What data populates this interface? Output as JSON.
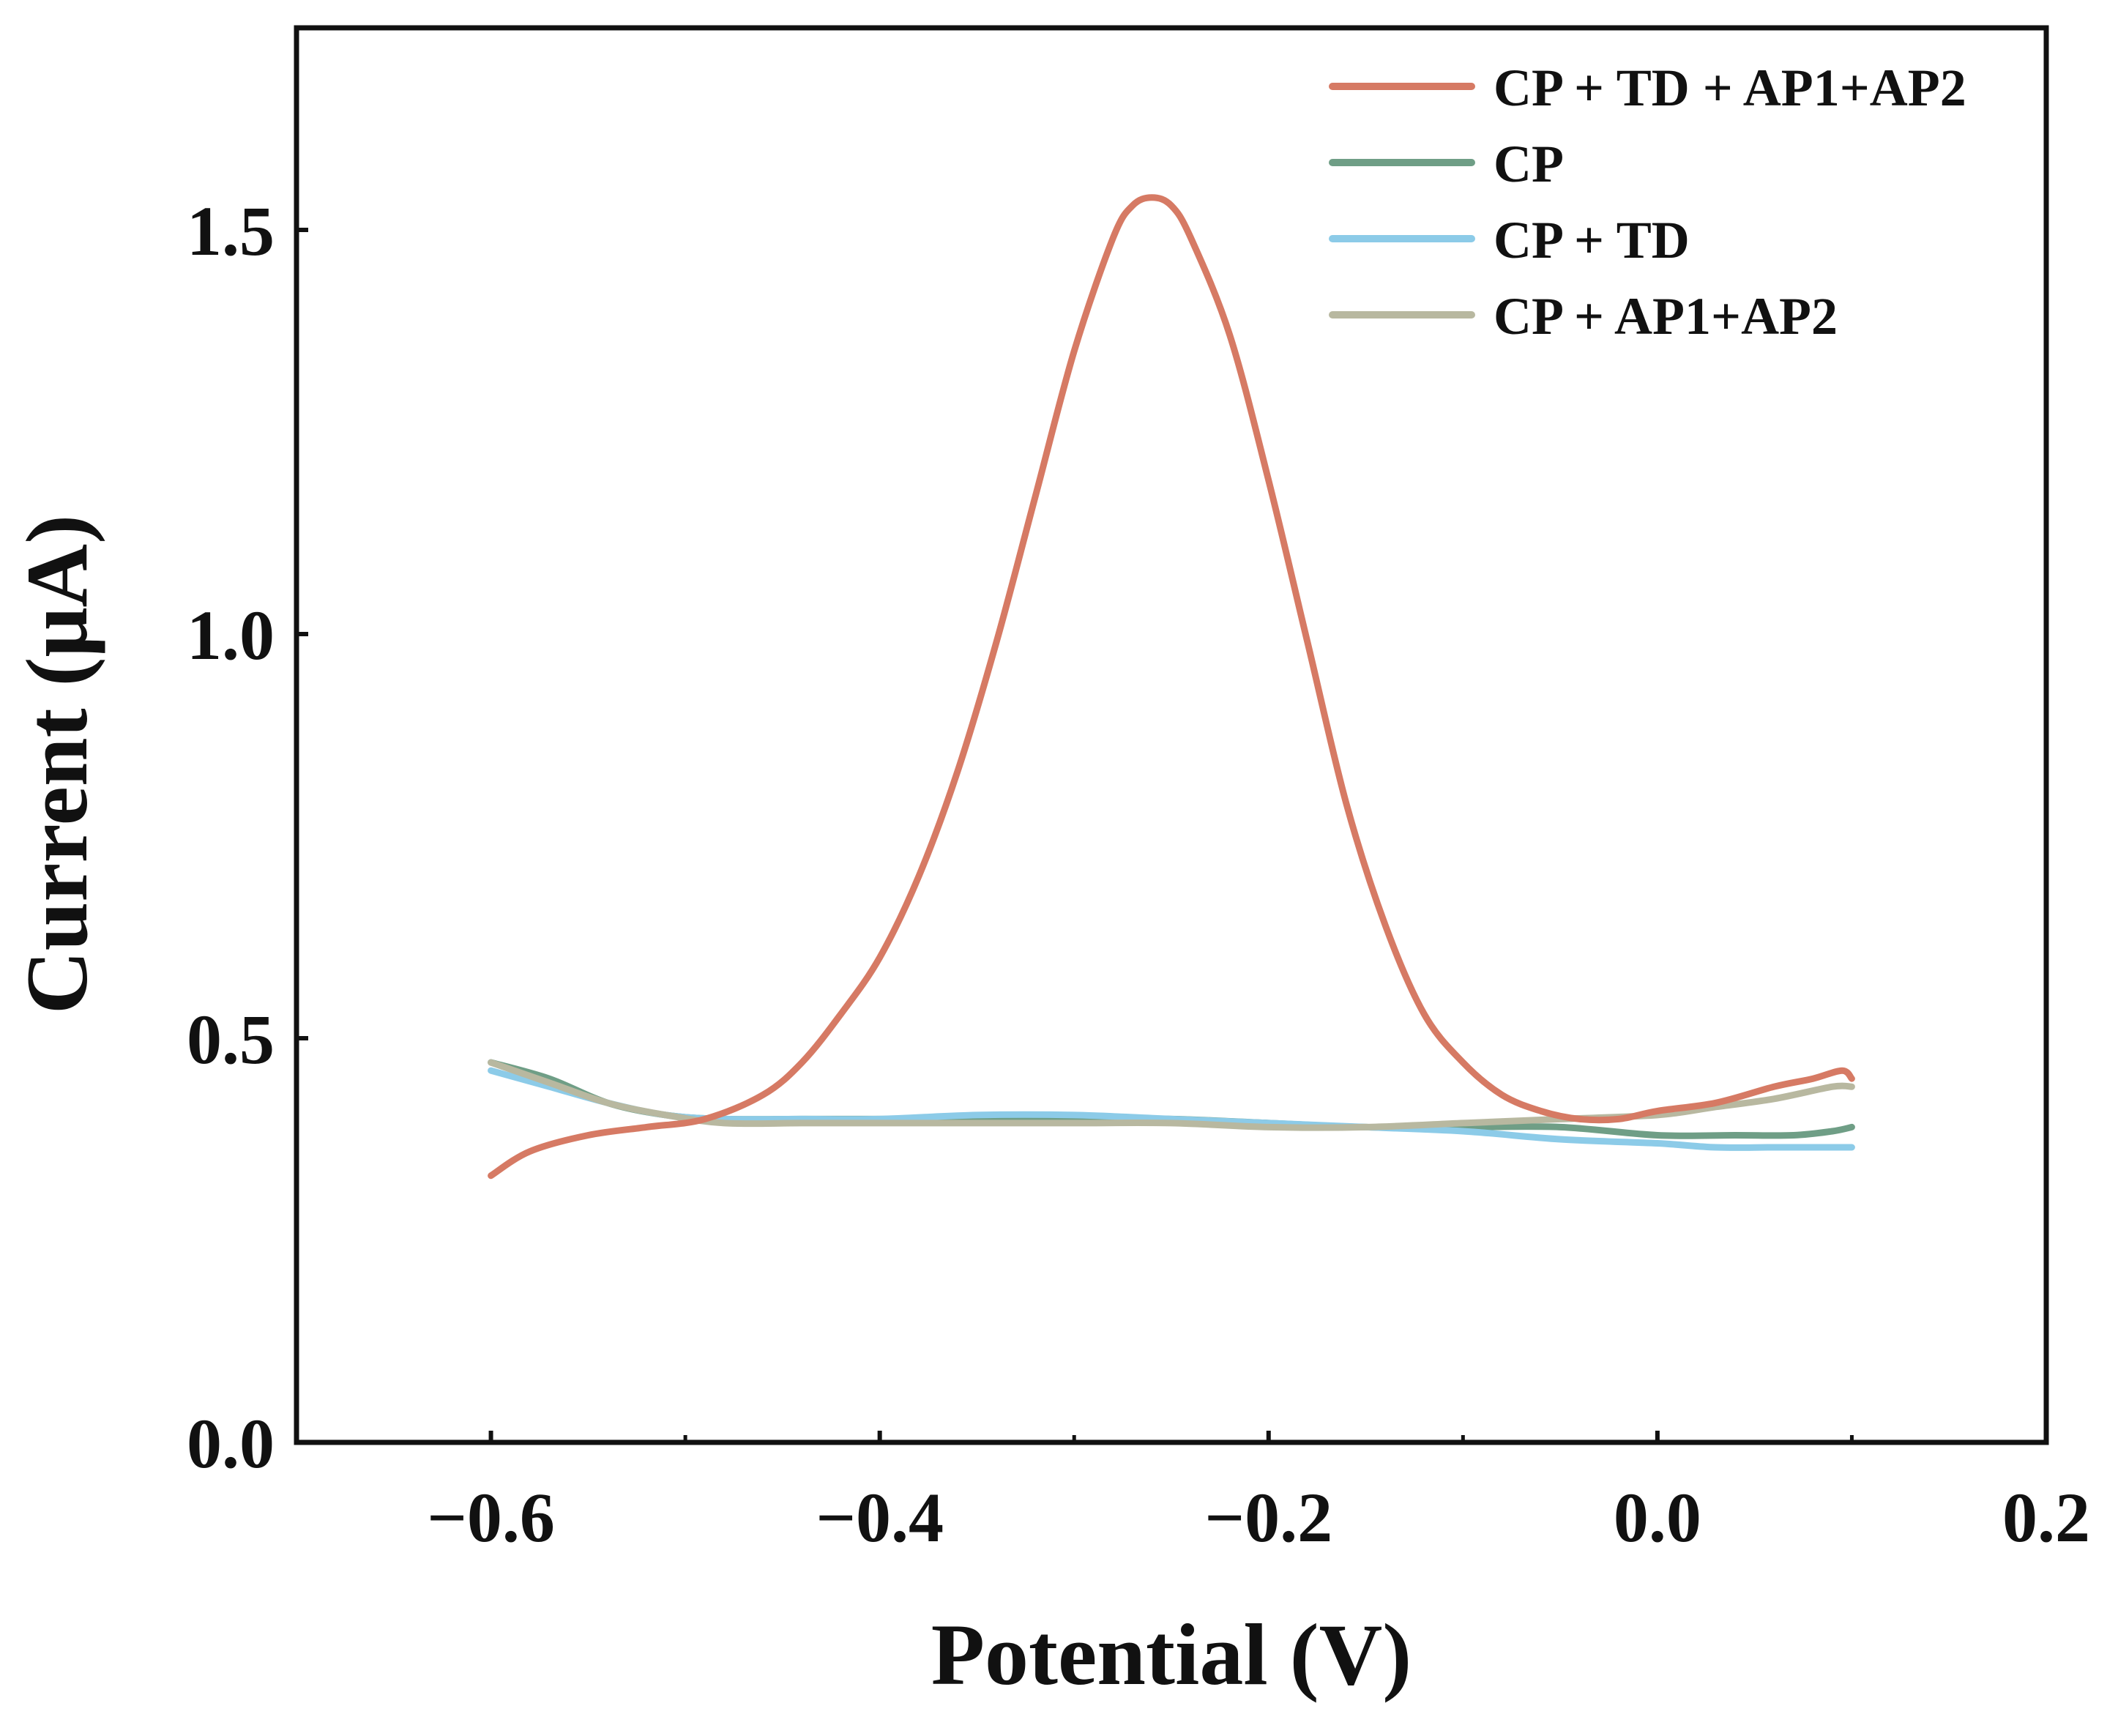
{
  "chart_data": {
    "type": "line",
    "title": "",
    "xlabel": "Potential (V)",
    "ylabel": "Current (μA)",
    "xlim": [
      -0.7,
      0.2
    ],
    "ylim": [
      0.0,
      1.75
    ],
    "x_ticks": [
      -0.6,
      -0.4,
      -0.2,
      0.0,
      0.2
    ],
    "x_tick_labels": [
      "−0.6",
      "−0.4",
      "−0.2",
      "0.0",
      "0.2"
    ],
    "x_minor_ticks": [
      -0.5,
      -0.3,
      -0.1,
      0.1
    ],
    "y_ticks": [
      0.0,
      0.5,
      1.0,
      1.5
    ],
    "y_tick_labels": [
      "0.0",
      "0.5",
      "1.0",
      "1.5"
    ],
    "grid": false,
    "legend_position": "top-right",
    "series": [
      {
        "name": "CP + TD + AP1+AP2",
        "color": "#d67a64",
        "x": [
          -0.6,
          -0.58,
          -0.55,
          -0.52,
          -0.49,
          -0.46,
          -0.44,
          -0.42,
          -0.4,
          -0.38,
          -0.36,
          -0.34,
          -0.32,
          -0.3,
          -0.28,
          -0.27,
          -0.26,
          -0.25,
          -0.24,
          -0.22,
          -0.2,
          -0.18,
          -0.16,
          -0.14,
          -0.12,
          -0.1,
          -0.08,
          -0.06,
          -0.04,
          -0.02,
          0.0,
          0.03,
          0.06,
          0.08,
          0.095,
          0.1
        ],
        "y": [
          0.33,
          0.36,
          0.38,
          0.39,
          0.4,
          0.43,
          0.47,
          0.53,
          0.6,
          0.7,
          0.83,
          0.99,
          1.17,
          1.35,
          1.49,
          1.53,
          1.54,
          1.53,
          1.49,
          1.37,
          1.19,
          0.99,
          0.79,
          0.64,
          0.53,
          0.47,
          0.43,
          0.41,
          0.4,
          0.4,
          0.41,
          0.42,
          0.44,
          0.45,
          0.46,
          0.45
        ]
      },
      {
        "name": "CP",
        "color": "#6f9e86",
        "x": [
          -0.6,
          -0.57,
          -0.54,
          -0.51,
          -0.48,
          -0.44,
          -0.4,
          -0.35,
          -0.3,
          -0.25,
          -0.2,
          -0.15,
          -0.1,
          -0.05,
          0.0,
          0.04,
          0.07,
          0.09,
          0.1
        ],
        "y": [
          0.47,
          0.45,
          0.42,
          0.405,
          0.4,
          0.4,
          0.4,
          0.4,
          0.4,
          0.4,
          0.395,
          0.39,
          0.39,
          0.39,
          0.38,
          0.38,
          0.38,
          0.385,
          0.39
        ]
      },
      {
        "name": "CP + TD",
        "color": "#8ccbe8",
        "x": [
          -0.6,
          -0.57,
          -0.54,
          -0.51,
          -0.48,
          -0.44,
          -0.4,
          -0.35,
          -0.3,
          -0.25,
          -0.2,
          -0.15,
          -0.1,
          -0.05,
          0.0,
          0.03,
          0.06,
          0.09,
          0.1
        ],
        "y": [
          0.46,
          0.44,
          0.42,
          0.405,
          0.4,
          0.4,
          0.4,
          0.405,
          0.405,
          0.4,
          0.395,
          0.39,
          0.385,
          0.375,
          0.37,
          0.365,
          0.365,
          0.365,
          0.365
        ]
      },
      {
        "name": "CP + AP1+AP2",
        "color": "#b8b8a0",
        "x": [
          -0.6,
          -0.57,
          -0.54,
          -0.51,
          -0.48,
          -0.44,
          -0.4,
          -0.35,
          -0.3,
          -0.25,
          -0.2,
          -0.15,
          -0.1,
          -0.05,
          0.0,
          0.03,
          0.06,
          0.09,
          0.1
        ],
        "y": [
          0.47,
          0.445,
          0.42,
          0.405,
          0.395,
          0.395,
          0.395,
          0.395,
          0.395,
          0.395,
          0.39,
          0.39,
          0.395,
          0.4,
          0.405,
          0.415,
          0.425,
          0.44,
          0.44
        ]
      }
    ]
  }
}
